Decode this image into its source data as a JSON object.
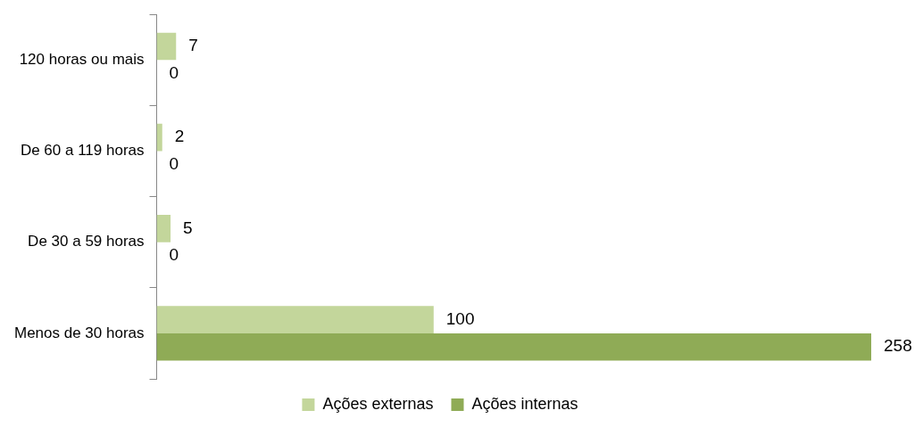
{
  "chart_data": {
    "type": "bar",
    "orientation": "horizontal",
    "categories": [
      "120 horas ou mais",
      "De 60 a 119 horas",
      "De 30 a 59 horas",
      "Menos de 30 horas"
    ],
    "series": [
      {
        "name": "Ações externas",
        "color": "#c3d69b",
        "values": [
          7,
          2,
          5,
          100
        ]
      },
      {
        "name": "Ações internas",
        "color": "#8fab56",
        "values": [
          0,
          0,
          0,
          258
        ]
      }
    ],
    "data_labels": true,
    "grid": false,
    "legend": "bottom",
    "tick_labels": "y"
  }
}
